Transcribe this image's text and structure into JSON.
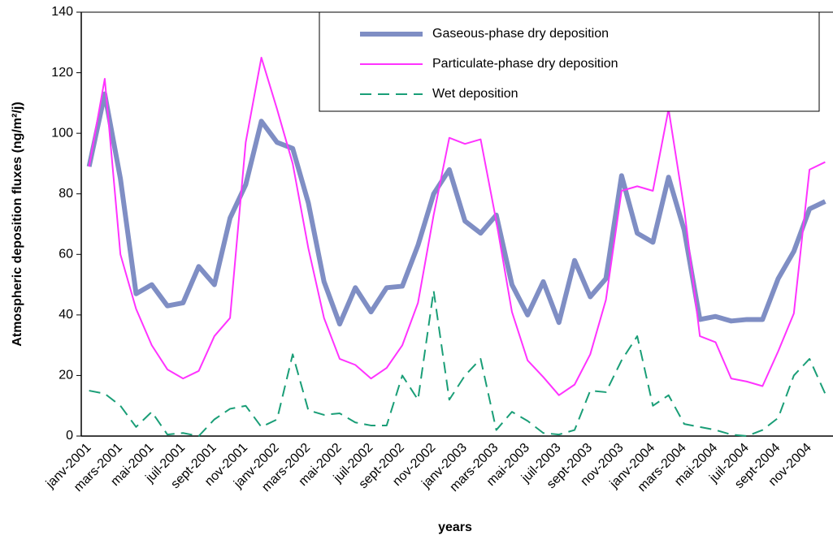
{
  "chart_data": {
    "type": "line",
    "x_label": "years",
    "y_label": "Atmospheric deposition fluxes (ng/m²/j)",
    "categories": [
      "janv-2001",
      null,
      "mars-2001",
      null,
      "mai-2001",
      null,
      "juil-2001",
      null,
      "sept-2001",
      null,
      "nov-2001",
      null,
      "janv-2002",
      null,
      "mars-2002",
      null,
      "mai-2002",
      null,
      "juil-2002",
      null,
      "sept-2002",
      null,
      "nov-2002",
      null,
      "janv-2003",
      null,
      "mars-2003",
      null,
      "mai-2003",
      null,
      "juil-2003",
      null,
      "sept-2003",
      null,
      "nov-2003",
      null,
      "janv-2004",
      null,
      "mars-2004",
      null,
      "mai-2004",
      null,
      "juil-2004",
      null,
      "sept-2004",
      null,
      "nov-2004",
      null
    ],
    "series": [
      {
        "name": "Gaseous-phase dry deposition",
        "color": "#7f8ec4",
        "width": 6,
        "dash": false,
        "values": [
          89,
          113,
          85,
          47,
          50,
          43,
          44,
          56,
          50,
          72,
          83,
          104,
          97,
          95,
          77,
          51,
          37,
          49,
          41,
          49,
          49.5,
          63,
          80,
          88,
          71,
          67,
          73,
          50,
          40,
          51,
          37.5,
          58,
          46,
          52,
          86,
          67,
          64,
          85.5,
          68,
          38.5,
          39.5,
          38,
          38.5,
          38.5,
          52,
          61,
          75,
          77.5
        ]
      },
      {
        "name": "Particulate-phase dry deposition",
        "color": "#ff33ff",
        "width": 2,
        "dash": false,
        "values": [
          89,
          118,
          60,
          42,
          30,
          22,
          19,
          21.5,
          33,
          39,
          97,
          125,
          108,
          90,
          62,
          39,
          25.5,
          23.5,
          19,
          22.5,
          30,
          44,
          73,
          98.5,
          96.5,
          98,
          71,
          41,
          25,
          19.5,
          13.5,
          17,
          27,
          45,
          81,
          82.5,
          81,
          108,
          75,
          33,
          31,
          19,
          18,
          16.5,
          28,
          40.5,
          88,
          90.5
        ]
      },
      {
        "name": "Wet deposition",
        "color": "#1a9e77",
        "width": 2,
        "dash": true,
        "values": [
          15,
          14,
          10,
          3,
          8,
          0.5,
          1,
          0,
          5.5,
          9,
          10,
          3,
          5.5,
          27,
          8.5,
          7,
          7.5,
          4.5,
          3.5,
          3.5,
          20,
          12,
          48,
          12,
          20,
          25.5,
          2,
          8,
          5,
          1,
          0.5,
          2,
          15,
          14.5,
          25,
          33,
          10,
          13.5,
          4,
          3,
          2,
          0.5,
          0,
          2,
          6,
          20,
          25.5,
          14
        ]
      }
    ],
    "ylim": [
      0,
      140
    ],
    "yticks": [
      0,
      20,
      40,
      60,
      80,
      100,
      120,
      140
    ],
    "grid": false
  }
}
